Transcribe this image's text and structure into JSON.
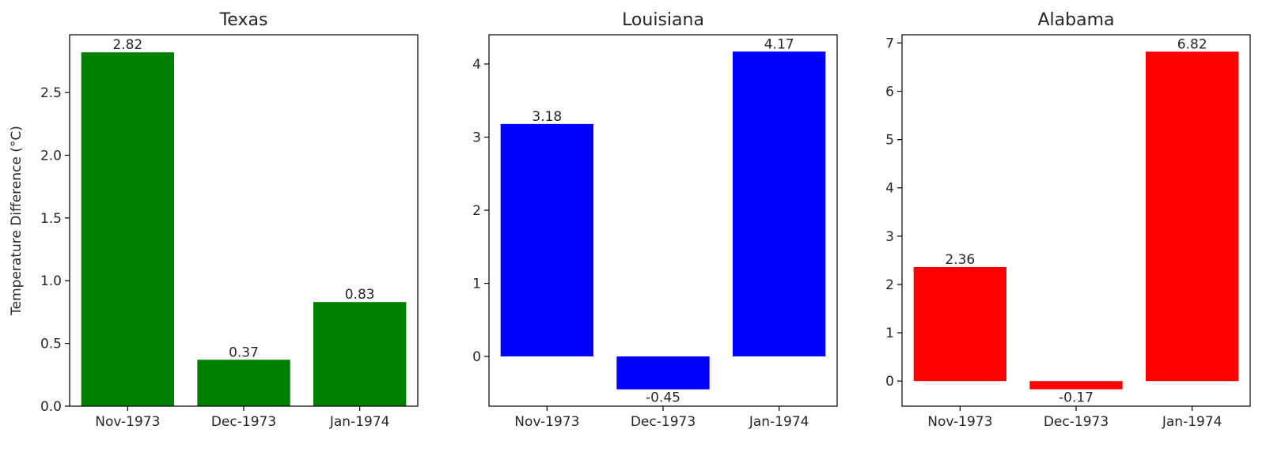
{
  "chart_data": [
    {
      "type": "bar",
      "title": "Texas",
      "ylabel": "Temperature Difference (°C)",
      "xlabel": "",
      "categories": [
        "Nov-1973",
        "Dec-1973",
        "Jan-1974"
      ],
      "values": [
        2.82,
        0.37,
        0.83
      ],
      "value_labels": [
        "2.82",
        "0.37",
        "0.83"
      ],
      "ylim": [
        0,
        2.96
      ],
      "yticks": [
        0.0,
        0.5,
        1.0,
        1.5,
        2.0,
        2.5
      ],
      "ytick_labels": [
        "0.0",
        "0.5",
        "1.0",
        "1.5",
        "2.0",
        "2.5"
      ],
      "color": "#008000",
      "grid": false,
      "legend": "none"
    },
    {
      "type": "bar",
      "title": "Louisiana",
      "ylabel": "",
      "xlabel": "",
      "categories": [
        "Nov-1973",
        "Dec-1973",
        "Jan-1974"
      ],
      "values": [
        3.18,
        -0.45,
        4.17
      ],
      "value_labels": [
        "3.18",
        "-0.45",
        "4.17"
      ],
      "ylim": [
        -0.68,
        4.4
      ],
      "yticks": [
        0,
        1,
        2,
        3,
        4
      ],
      "ytick_labels": [
        "0",
        "1",
        "2",
        "3",
        "4"
      ],
      "color": "#0000ff",
      "grid": false,
      "legend": "none"
    },
    {
      "type": "bar",
      "title": "Alabama",
      "ylabel": "",
      "xlabel": "",
      "categories": [
        "Nov-1973",
        "Dec-1973",
        "Jan-1974"
      ],
      "values": [
        2.36,
        -0.17,
        6.82
      ],
      "value_labels": [
        "2.36",
        "-0.17",
        "6.82"
      ],
      "ylim": [
        -0.52,
        7.17
      ],
      "yticks": [
        0,
        1,
        2,
        3,
        4,
        5,
        6,
        7
      ],
      "ytick_labels": [
        "0",
        "1",
        "2",
        "3",
        "4",
        "5",
        "6",
        "7"
      ],
      "color": "#ff0000",
      "grid": false,
      "legend": "none"
    }
  ]
}
